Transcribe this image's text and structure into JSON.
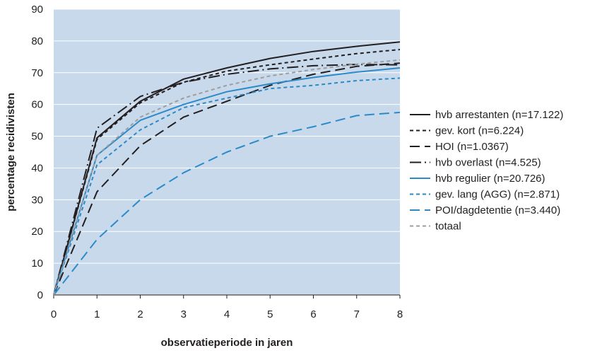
{
  "chart_data": {
    "type": "line",
    "xlabel": "observatieperiode in jaren",
    "ylabel": "percentage recidivisten",
    "xlim": [
      0,
      8
    ],
    "ylim": [
      0,
      90
    ],
    "x_ticks": [
      0,
      1,
      2,
      3,
      4,
      5,
      6,
      7,
      8
    ],
    "y_ticks": [
      0,
      10,
      20,
      30,
      40,
      50,
      60,
      70,
      80,
      90
    ],
    "grid": true,
    "legend_position": "right",
    "plot_background": "#c8d9ec",
    "x": [
      0,
      1,
      2,
      3,
      4,
      5,
      6,
      7,
      8
    ],
    "series": [
      {
        "name": "hvb arrestanten (n=17.122)",
        "color": "#231f20",
        "dash": "solid",
        "values": [
          0,
          49.5,
          61,
          68,
          71.5,
          74.5,
          76.7,
          78.3,
          79.7
        ]
      },
      {
        "name": "gev. kort (n=6.224)",
        "color": "#231f20",
        "dash": "short",
        "values": [
          0,
          49,
          60.5,
          67,
          70.5,
          72.5,
          74.3,
          76,
          77.3
        ]
      },
      {
        "name": "HOI (n=1.0367)",
        "color": "#231f20",
        "dash": "long",
        "values": [
          0,
          32.5,
          47,
          56,
          61,
          66,
          69.5,
          72,
          73
        ]
      },
      {
        "name": "hvb overlast (n=4.525)",
        "color": "#231f20",
        "dash": "dashdot",
        "values": [
          0,
          52.5,
          62.5,
          67,
          69.5,
          71.2,
          72.2,
          72.6,
          72.5
        ]
      },
      {
        "name": "hvb regulier (n=20.726)",
        "color": "#2b8ac8",
        "dash": "solid",
        "values": [
          0,
          44,
          55,
          60,
          64,
          66.5,
          68.5,
          70.2,
          71.5
        ]
      },
      {
        "name": "gev. lang (AGG) (n=2.871)",
        "color": "#2b8ac8",
        "dash": "short",
        "values": [
          0,
          41,
          52,
          59,
          62,
          65,
          66,
          67.5,
          68.3
        ]
      },
      {
        "name": "POI/dagdetentie (n=3.440)",
        "color": "#2b8ac8",
        "dash": "long",
        "values": [
          0,
          17.5,
          30,
          38.5,
          45,
          50,
          53,
          56.5,
          57.5
        ]
      },
      {
        "name": "totaal",
        "color": "#9d9d9c",
        "dash": "short",
        "values": [
          0,
          44,
          56,
          62,
          66,
          69,
          71,
          72.7,
          74
        ]
      }
    ]
  }
}
